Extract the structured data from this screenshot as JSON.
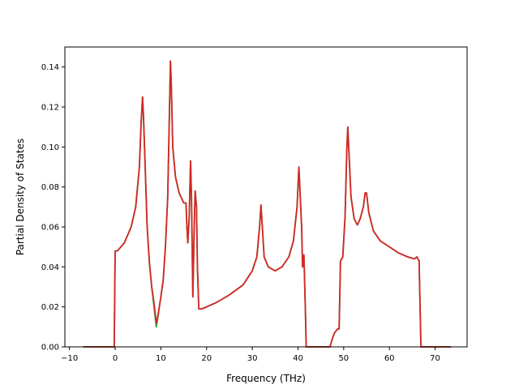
{
  "chart_data": {
    "type": "line",
    "xlabel": "Frequency (THz)",
    "ylabel": "Partial Density of States",
    "xlim": [
      -11,
      77
    ],
    "ylim": [
      0,
      0.15
    ],
    "grid": false,
    "legend": "none",
    "x_ticks": [
      -10,
      0,
      10,
      20,
      30,
      40,
      50,
      60,
      70
    ],
    "y_ticks": [
      0.0,
      0.02,
      0.04,
      0.06,
      0.08,
      0.1,
      0.12,
      0.14
    ],
    "x_tick_labels": [
      "−10",
      "0",
      "10",
      "20",
      "30",
      "40",
      "50",
      "60",
      "70"
    ],
    "y_tick_labels": [
      "0.00",
      "0.02",
      "0.04",
      "0.06",
      "0.08",
      "0.10",
      "0.12",
      "0.14"
    ],
    "series": [
      {
        "color": "#2ca02c",
        "points": [
          [
            -7,
            0
          ],
          [
            -0.2,
            0
          ],
          [
            0,
            0.048
          ],
          [
            0.5,
            0.048
          ],
          [
            2,
            0.052
          ],
          [
            3.5,
            0.06
          ],
          [
            4.5,
            0.07
          ],
          [
            5.3,
            0.09
          ],
          [
            5.7,
            0.113
          ],
          [
            6,
            0.125
          ],
          [
            6.2,
            0.115
          ],
          [
            6.5,
            0.095
          ],
          [
            7,
            0.06
          ],
          [
            7.5,
            0.042
          ],
          [
            8,
            0.03
          ],
          [
            8.5,
            0.02
          ],
          [
            9,
            0.01
          ],
          [
            9.3,
            0.014
          ],
          [
            9.8,
            0.022
          ],
          [
            10.5,
            0.033
          ],
          [
            11,
            0.05
          ],
          [
            11.5,
            0.075
          ],
          [
            11.9,
            0.12
          ],
          [
            12.1,
            0.143
          ],
          [
            12.3,
            0.13
          ],
          [
            12.6,
            0.1
          ],
          [
            13.2,
            0.085
          ],
          [
            14,
            0.077
          ],
          [
            15,
            0.072
          ],
          [
            15.5,
            0.072
          ],
          [
            15.7,
            0.06
          ],
          [
            15.9,
            0.052
          ],
          [
            16.2,
            0.065
          ],
          [
            16.5,
            0.093
          ],
          [
            16.7,
            0.075
          ],
          [
            17,
            0.025
          ],
          [
            17.3,
            0.06
          ],
          [
            17.5,
            0.078
          ],
          [
            17.8,
            0.07
          ],
          [
            18,
            0.04
          ],
          [
            18.3,
            0.019
          ],
          [
            19,
            0.019
          ],
          [
            22,
            0.022
          ],
          [
            25,
            0.026
          ],
          [
            28,
            0.031
          ],
          [
            30,
            0.038
          ],
          [
            31,
            0.045
          ],
          [
            31.6,
            0.06
          ],
          [
            31.9,
            0.071
          ],
          [
            32.2,
            0.06
          ],
          [
            32.6,
            0.045
          ],
          [
            33.5,
            0.04
          ],
          [
            35,
            0.038
          ],
          [
            36.5,
            0.04
          ],
          [
            38,
            0.045
          ],
          [
            39,
            0.053
          ],
          [
            39.8,
            0.07
          ],
          [
            40.2,
            0.09
          ],
          [
            40.5,
            0.075
          ],
          [
            40.8,
            0.06
          ],
          [
            41,
            0.04
          ],
          [
            41.3,
            0.046
          ],
          [
            41.6,
            0.02
          ],
          [
            41.8,
            0
          ],
          [
            47,
            0
          ],
          [
            47.5,
            0.004
          ],
          [
            48,
            0.007
          ],
          [
            48.7,
            0.009
          ],
          [
            49,
            0.009
          ],
          [
            49.3,
            0.043
          ],
          [
            49.8,
            0.045
          ],
          [
            50.3,
            0.065
          ],
          [
            50.7,
            0.1
          ],
          [
            50.9,
            0.11
          ],
          [
            51.2,
            0.095
          ],
          [
            51.6,
            0.075
          ],
          [
            52.3,
            0.064
          ],
          [
            53,
            0.061
          ],
          [
            53.6,
            0.064
          ],
          [
            54.3,
            0.07
          ],
          [
            54.7,
            0.077
          ],
          [
            55,
            0.077
          ],
          [
            55.5,
            0.067
          ],
          [
            56.5,
            0.058
          ],
          [
            58,
            0.053
          ],
          [
            60,
            0.05
          ],
          [
            62,
            0.047
          ],
          [
            64,
            0.045
          ],
          [
            65.5,
            0.044
          ],
          [
            66,
            0.045
          ],
          [
            66.5,
            0.043
          ],
          [
            66.9,
            0
          ],
          [
            73.5,
            0
          ]
        ]
      },
      {
        "color": "#d62728",
        "points": [
          [
            -7,
            0
          ],
          [
            -0.2,
            0
          ],
          [
            0,
            0.048
          ],
          [
            0.5,
            0.048
          ],
          [
            2,
            0.052
          ],
          [
            3.5,
            0.06
          ],
          [
            4.5,
            0.07
          ],
          [
            5.3,
            0.09
          ],
          [
            5.7,
            0.113
          ],
          [
            6,
            0.125
          ],
          [
            6.2,
            0.115
          ],
          [
            6.5,
            0.095
          ],
          [
            7,
            0.06
          ],
          [
            7.5,
            0.042
          ],
          [
            8,
            0.03
          ],
          [
            8.5,
            0.022
          ],
          [
            9,
            0.012
          ],
          [
            9.3,
            0.015
          ],
          [
            9.8,
            0.022
          ],
          [
            10.5,
            0.033
          ],
          [
            11,
            0.05
          ],
          [
            11.5,
            0.075
          ],
          [
            11.9,
            0.12
          ],
          [
            12.1,
            0.143
          ],
          [
            12.3,
            0.13
          ],
          [
            12.6,
            0.1
          ],
          [
            13.2,
            0.085
          ],
          [
            14,
            0.077
          ],
          [
            15,
            0.072
          ],
          [
            15.5,
            0.072
          ],
          [
            15.7,
            0.06
          ],
          [
            15.9,
            0.052
          ],
          [
            16.2,
            0.065
          ],
          [
            16.5,
            0.093
          ],
          [
            16.7,
            0.075
          ],
          [
            17,
            0.025
          ],
          [
            17.3,
            0.06
          ],
          [
            17.5,
            0.078
          ],
          [
            17.8,
            0.07
          ],
          [
            18,
            0.04
          ],
          [
            18.3,
            0.019
          ],
          [
            19,
            0.019
          ],
          [
            22,
            0.022
          ],
          [
            25,
            0.026
          ],
          [
            28,
            0.031
          ],
          [
            30,
            0.038
          ],
          [
            31,
            0.045
          ],
          [
            31.6,
            0.06
          ],
          [
            31.9,
            0.071
          ],
          [
            32.2,
            0.06
          ],
          [
            32.6,
            0.045
          ],
          [
            33.5,
            0.04
          ],
          [
            35,
            0.038
          ],
          [
            36.5,
            0.04
          ],
          [
            38,
            0.045
          ],
          [
            39,
            0.053
          ],
          [
            39.8,
            0.07
          ],
          [
            40.2,
            0.09
          ],
          [
            40.5,
            0.075
          ],
          [
            40.8,
            0.06
          ],
          [
            41,
            0.04
          ],
          [
            41.3,
            0.046
          ],
          [
            41.6,
            0.02
          ],
          [
            41.8,
            0
          ],
          [
            47,
            0
          ],
          [
            47.5,
            0.004
          ],
          [
            48,
            0.007
          ],
          [
            48.7,
            0.009
          ],
          [
            49,
            0.009
          ],
          [
            49.3,
            0.043
          ],
          [
            49.8,
            0.045
          ],
          [
            50.3,
            0.065
          ],
          [
            50.7,
            0.1
          ],
          [
            50.9,
            0.11
          ],
          [
            51.2,
            0.095
          ],
          [
            51.6,
            0.075
          ],
          [
            52.3,
            0.064
          ],
          [
            53,
            0.061
          ],
          [
            53.6,
            0.064
          ],
          [
            54.3,
            0.07
          ],
          [
            54.7,
            0.077
          ],
          [
            55,
            0.077
          ],
          [
            55.5,
            0.067
          ],
          [
            56.5,
            0.058
          ],
          [
            58,
            0.053
          ],
          [
            60,
            0.05
          ],
          [
            62,
            0.047
          ],
          [
            64,
            0.045
          ],
          [
            65.5,
            0.044
          ],
          [
            66,
            0.045
          ],
          [
            66.5,
            0.043
          ],
          [
            66.9,
            0
          ],
          [
            73.5,
            0
          ]
        ]
      }
    ]
  }
}
